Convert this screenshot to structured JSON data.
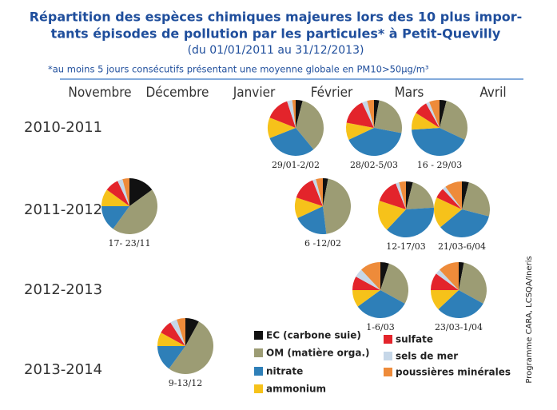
{
  "chart_data": {
    "type": "pie",
    "title": [
      "Répartition des espèces chimiques majeures lors des 10 plus impor-",
      "tants épisodes de pollution par les particules* à Petit-Quevilly"
    ],
    "subtitle": "(du 01/01/2011 au 31/12/2013)",
    "footnote": "*au moins 5 jours consécutifs présentant une moyenne globale en PM10>50µg/m³",
    "months": [
      "Novembre",
      "Décembre",
      "Janvier",
      "Février",
      "Mars",
      "Avril"
    ],
    "rows": [
      "2010-2011",
      "2011-2012",
      "2012-2013",
      "2013-2014"
    ],
    "source": "Programme CARA, LCSQA/Ineris",
    "categories": [
      "29/01-2/02",
      "28/02-5/03",
      "16 - 29/03",
      "17- 23/11",
      "6 -12/02",
      "12-17/03",
      "21/03-6/04",
      "1-6/03",
      "23/03-1/04",
      "9-13/12"
    ],
    "series": [
      {
        "name": "EC (carbone suie)",
        "color": "#111111",
        "values": [
          4,
          3,
          4,
          15,
          3,
          4,
          4,
          5,
          3,
          8
        ]
      },
      {
        "name": "OM (matière orga.)",
        "color": "#9c9c74",
        "values": [
          35,
          25,
          28,
          45,
          45,
          20,
          25,
          28,
          30,
          52
        ]
      },
      {
        "name": "nitrate",
        "color": "#2e7fb8",
        "values": [
          30,
          40,
          42,
          15,
          20,
          38,
          35,
          32,
          30,
          15
        ]
      },
      {
        "name": "ammonium",
        "color": "#f6c21a",
        "values": [
          12,
          10,
          10,
          10,
          12,
          18,
          18,
          10,
          12,
          8
        ]
      },
      {
        "name": "sulfate",
        "color": "#e3242b",
        "values": [
          14,
          15,
          8,
          8,
          14,
          14,
          6,
          8,
          10,
          8
        ]
      },
      {
        "name": "sels de mer",
        "color": "#c6d7e8",
        "values": [
          3,
          3,
          2,
          3,
          2,
          2,
          2,
          5,
          3,
          4
        ]
      },
      {
        "name": "poussières minérales",
        "color": "#ee8b3a",
        "values": [
          2,
          4,
          6,
          4,
          4,
          4,
          10,
          12,
          12,
          5
        ]
      }
    ]
  }
}
